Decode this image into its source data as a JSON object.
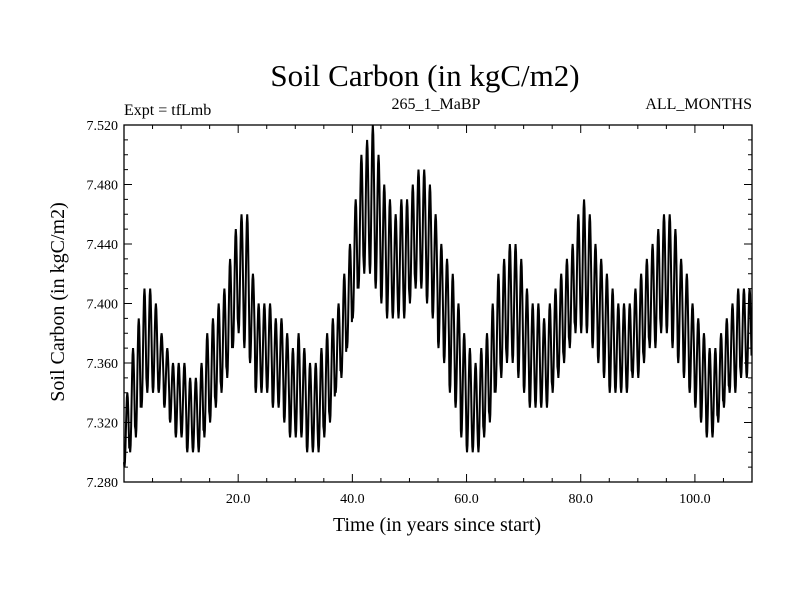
{
  "chart_data": {
    "type": "line",
    "title": "Soil Carbon (in kgC/m2)",
    "subtitle_left": "Expt = tfLmb",
    "subtitle_center": "265_1_MaBP",
    "subtitle_right": "ALL_MONTHS",
    "xlabel": "Time (in years since start)",
    "ylabel": "Soil Carbon (in kgC/m2)",
    "xlim": [
      0,
      110
    ],
    "ylim": [
      7.28,
      7.52
    ],
    "x_ticks": [
      20,
      40,
      60,
      80,
      100
    ],
    "x_tick_labels": [
      "20.0",
      "40.0",
      "60.0",
      "80.0",
      "100.0"
    ],
    "y_ticks": [
      7.28,
      7.32,
      7.36,
      7.4,
      7.44,
      7.48,
      7.52
    ],
    "y_tick_labels": [
      "7.280",
      "7.320",
      "7.360",
      "7.400",
      "7.440",
      "7.480",
      "7.520"
    ],
    "series": [
      {
        "name": "Soil Carbon",
        "color": "#000000",
        "sampling": "monthly",
        "annual_cycle_peak_month": 7,
        "annual_max": [
          7.34,
          7.37,
          7.39,
          7.41,
          7.41,
          7.4,
          7.38,
          7.37,
          7.36,
          7.36,
          7.36,
          7.35,
          7.35,
          7.36,
          7.38,
          7.39,
          7.4,
          7.41,
          7.43,
          7.45,
          7.46,
          7.46,
          7.42,
          7.4,
          7.4,
          7.4,
          7.39,
          7.39,
          7.38,
          7.37,
          7.38,
          7.37,
          7.36,
          7.36,
          7.37,
          7.38,
          7.39,
          7.4,
          7.42,
          7.44,
          7.47,
          7.5,
          7.51,
          7.52,
          7.5,
          7.48,
          7.47,
          7.46,
          7.47,
          7.47,
          7.48,
          7.49,
          7.49,
          7.48,
          7.46,
          7.44,
          7.43,
          7.42,
          7.4,
          7.38,
          7.37,
          7.36,
          7.37,
          7.38,
          7.4,
          7.42,
          7.43,
          7.44,
          7.44,
          7.43,
          7.41,
          7.4,
          7.4,
          7.39,
          7.4,
          7.41,
          7.42,
          7.43,
          7.44,
          7.46,
          7.47,
          7.46,
          7.44,
          7.43,
          7.42,
          7.41,
          7.4,
          7.4,
          7.4,
          7.41,
          7.42,
          7.43,
          7.44,
          7.45,
          7.46,
          7.46,
          7.45,
          7.43,
          7.42,
          7.4,
          7.39,
          7.38,
          7.37,
          7.37,
          7.38,
          7.39,
          7.4,
          7.41,
          7.41,
          7.41
        ],
        "annual_min": [
          7.29,
          7.3,
          7.31,
          7.33,
          7.34,
          7.34,
          7.34,
          7.33,
          7.32,
          7.31,
          7.31,
          7.3,
          7.3,
          7.3,
          7.31,
          7.32,
          7.33,
          7.34,
          7.35,
          7.37,
          7.38,
          7.37,
          7.36,
          7.34,
          7.34,
          7.34,
          7.33,
          7.33,
          7.32,
          7.31,
          7.31,
          7.31,
          7.3,
          7.3,
          7.3,
          7.31,
          7.32,
          7.34,
          7.35,
          7.37,
          7.39,
          7.41,
          7.42,
          7.42,
          7.41,
          7.4,
          7.39,
          7.39,
          7.39,
          7.39,
          7.4,
          7.41,
          7.41,
          7.4,
          7.39,
          7.37,
          7.36,
          7.34,
          7.33,
          7.31,
          7.3,
          7.3,
          7.3,
          7.31,
          7.32,
          7.34,
          7.35,
          7.36,
          7.36,
          7.35,
          7.34,
          7.33,
          7.33,
          7.33,
          7.33,
          7.34,
          7.35,
          7.36,
          7.37,
          7.38,
          7.38,
          7.38,
          7.37,
          7.36,
          7.35,
          7.34,
          7.34,
          7.34,
          7.34,
          7.35,
          7.35,
          7.36,
          7.37,
          7.37,
          7.38,
          7.38,
          7.37,
          7.36,
          7.35,
          7.34,
          7.33,
          7.32,
          7.31,
          7.31,
          7.32,
          7.33,
          7.34,
          7.34,
          7.35,
          7.35
        ]
      }
    ]
  }
}
